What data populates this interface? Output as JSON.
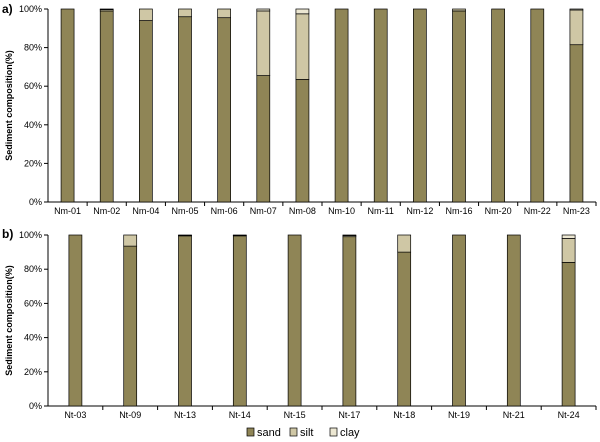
{
  "colors": {
    "sand": "#8f8556",
    "silt": "#cfc7a5",
    "clay": "#ece7d2"
  },
  "chart_data": [
    {
      "type": "bar",
      "stacked": true,
      "panel_label": "a)",
      "ylabel": "Sediment composition(%)",
      "ylim": [
        0,
        100
      ],
      "yticks": [
        "0%",
        "20%",
        "40%",
        "60%",
        "80%",
        "100%"
      ],
      "categories": [
        "Nm-01",
        "Nm-02",
        "Nm-04",
        "Nm-05",
        "Nm-06",
        "Nm-07",
        "Nm-08",
        "Nm-10",
        "Nm-11",
        "Nm-12",
        "Nm-16",
        "Nm-20",
        "Nm-22",
        "Nm-23"
      ],
      "series": [
        {
          "name": "sand",
          "values": [
            100,
            99,
            94,
            96,
            95.5,
            65.5,
            63.5,
            100,
            100,
            100,
            99,
            100,
            100,
            81.5
          ]
        },
        {
          "name": "silt",
          "values": [
            0,
            0.7,
            6,
            4,
            4.5,
            33.5,
            34,
            0,
            0,
            0,
            1,
            0,
            0,
            18
          ]
        },
        {
          "name": "clay",
          "values": [
            0,
            0.3,
            0,
            0,
            0,
            1,
            2.5,
            0,
            0,
            0,
            0,
            0,
            0,
            0.5
          ]
        }
      ]
    },
    {
      "type": "bar",
      "stacked": true,
      "panel_label": "b)",
      "ylabel": "Sediment composition(%)",
      "ylim": [
        0,
        100
      ],
      "yticks": [
        "0%",
        "20%",
        "40%",
        "60%",
        "80%",
        "100%"
      ],
      "categories": [
        "Nt-03",
        "Nt-09",
        "Nt-13",
        "Nt-14",
        "Nt-15",
        "Nt-17",
        "Nt-18",
        "Nt-19",
        "Nt-21",
        "Nt-24"
      ],
      "series": [
        {
          "name": "sand",
          "values": [
            100,
            93.5,
            99.5,
            99.5,
            100,
            99,
            90,
            100,
            100,
            84
          ]
        },
        {
          "name": "silt",
          "values": [
            0,
            6.5,
            0.3,
            0.3,
            0,
            0.7,
            10,
            0,
            0,
            14
          ]
        },
        {
          "name": "clay",
          "values": [
            0,
            0,
            0.2,
            0.2,
            0,
            0.3,
            0,
            0,
            0,
            2
          ]
        }
      ]
    }
  ],
  "legend": [
    "sand",
    "silt",
    "clay"
  ]
}
